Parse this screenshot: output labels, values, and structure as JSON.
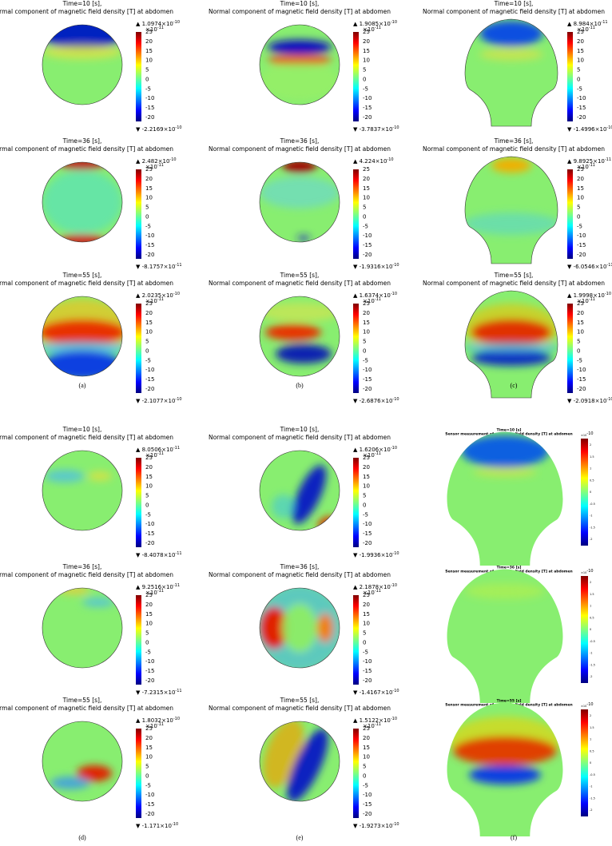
{
  "colorbar_ticks": [
    "25",
    "20",
    "15",
    "10",
    "5",
    "0",
    "-5",
    "-10",
    "-15",
    "-20"
  ],
  "sensor_colorbar_ticks": [
    "2",
    "1.5",
    "1",
    "0.5",
    "0",
    "-0.5",
    "-1",
    "-1.5",
    "-2"
  ],
  "panels": [
    {
      "label": "(a)",
      "plots": [
        {
          "title1": "Time=10 [s],",
          "title2": "Normal component of magnetic field density [T] at abdomen",
          "max": "▲ 1.0974×10",
          "max_exp": "-10",
          "min": "▼ -2.2169×10",
          "min_exp": "-10",
          "scale": "×10",
          "scale_exp": "-11"
        },
        {
          "title1": "Time=36 [s],",
          "title2": "Normal component of magnetic field density [T] at abdomen",
          "max": "▲ 2.482×10",
          "max_exp": "-10",
          "min": "▼ -8.1757×10",
          "min_exp": "-11",
          "scale": "×10",
          "scale_exp": "-11"
        },
        {
          "title1": "Time=55 [s],",
          "title2": "Normal component of magnetic field density [T] at abdomen",
          "max": "▲ 2.0235×10",
          "max_exp": "-10",
          "min": "▼ -2.1077×10",
          "min_exp": "-10",
          "scale": "×10",
          "scale_exp": "-11"
        }
      ]
    },
    {
      "label": "(b)",
      "plots": [
        {
          "title1": "Time=10 [s],",
          "title2": "Normal component of magnetic field density [T] at abdomen",
          "max": "▲ 1.9085×10",
          "max_exp": "-10",
          "min": "▼ -3.7837×10",
          "min_exp": "-10",
          "scale": "×10",
          "scale_exp": "-11"
        },
        {
          "title1": "Time=36 [s],",
          "title2": "Normal component of magnetic field density [T] at abdomen",
          "max": "▲ 4.224×10",
          "max_exp": "-10",
          "min": "▼ -1.9316×10",
          "min_exp": "-10"
        },
        {
          "title1": "Time=55 [s],",
          "title2": "Normal component of magnetic field density [T] at abdomen",
          "max": "▲ 1.6374×10",
          "max_exp": "-10",
          "min": "▼ -2.6876×10",
          "min_exp": "-10",
          "scale": "×10",
          "scale_exp": "-11"
        }
      ]
    },
    {
      "label": "(c)",
      "plots": [
        {
          "title1": "Time=10 [s],",
          "title2": "Normal component of magnetic field density [T] at abdomen",
          "max": "▲ 8.984×10",
          "max_exp": "-11",
          "min": "▼ -1.4996×10",
          "min_exp": "-10",
          "scale": "×10",
          "scale_exp": "-11"
        },
        {
          "title1": "Time=36 [s],",
          "title2": "Normal component of magnetic field density [T] at abdomen",
          "max": "▲ 9.8925×10",
          "max_exp": "-11",
          "min": "▼ -6.0546×10",
          "min_exp": "-11",
          "scale": "×10",
          "scale_exp": "-11"
        },
        {
          "title1": "Time=55 [s],",
          "title2": "Normal component of magnetic field density [T] at abdomen",
          "max": "▲ 1.9998×10",
          "max_exp": "-10",
          "min": "▼ -2.0918×10",
          "min_exp": "-10",
          "scale": "×10",
          "scale_exp": "-11"
        }
      ]
    },
    {
      "label": "(d)",
      "plots": [
        {
          "title1": "Time=10 [s],",
          "title2": "Normal component of magnetic field density [T] at abdomen",
          "max": "▲ 8.0506×10",
          "max_exp": "-11",
          "min": "▼ -8.4078×10",
          "min_exp": "-11",
          "scale": "×10",
          "scale_exp": "-11"
        },
        {
          "title1": "Time=36 [s],",
          "title2": "Normal component of magnetic field density [T] at abdomen",
          "max": "▲ 9.2516×10",
          "max_exp": "-11",
          "min": "▼ -7.2315×10",
          "min_exp": "-11",
          "scale": "×10",
          "scale_exp": "-11"
        },
        {
          "title1": "Time=55 [s],",
          "title2": "Normal component of magnetic field density [T] at abdomen",
          "max": "▲ 1.8032×10",
          "max_exp": "-10",
          "min": "▼ -1.171×10",
          "min_exp": "-10",
          "scale": "×10",
          "scale_exp": "-11"
        }
      ]
    },
    {
      "label": "(e)",
      "plots": [
        {
          "title1": "Time=10 [s],",
          "title2": "Normal component of magnetic field density [T] at abdomen",
          "max": "▲ 1.6206×10",
          "max_exp": "-10",
          "min": "▼ -1.9936×10",
          "min_exp": "-10",
          "scale": "×10",
          "scale_exp": "-11"
        },
        {
          "title1": "Time=36 [s],",
          "title2": "Normal component of magnetic field density [T] at abdomen",
          "max": "▲ 2.1878×10",
          "max_exp": "-10",
          "min": "▼ -1.4167×10",
          "min_exp": "-10",
          "scale": "×10",
          "scale_exp": "-11"
        },
        {
          "title1": "Time=55 [s],",
          "title2": "Normal component of magnetic field density [T] at abdomen",
          "max": "▲ 1.5122×10",
          "max_exp": "-10",
          "min": "▼ -1.9273×10",
          "min_exp": "-10",
          "scale": "×10",
          "scale_exp": "-11"
        }
      ]
    },
    {
      "label": "(f)",
      "plots": [
        {
          "title1": "Time=10 [s]",
          "title2": "Sensor measurement of magnetic field density [T] at abdomen",
          "scale": "×10",
          "scale_exp": "-10"
        },
        {
          "title1": "Time=36 [s]",
          "title2": "Sensor measurement of magnetic field density [T] at abdomen",
          "scale": "×10",
          "scale_exp": "-10"
        },
        {
          "title1": "Time=55 [s]",
          "title2": "Sensor measurement of magnetic field density [T] at abdomen",
          "scale": "×10",
          "scale_exp": "-10"
        }
      ]
    }
  ]
}
